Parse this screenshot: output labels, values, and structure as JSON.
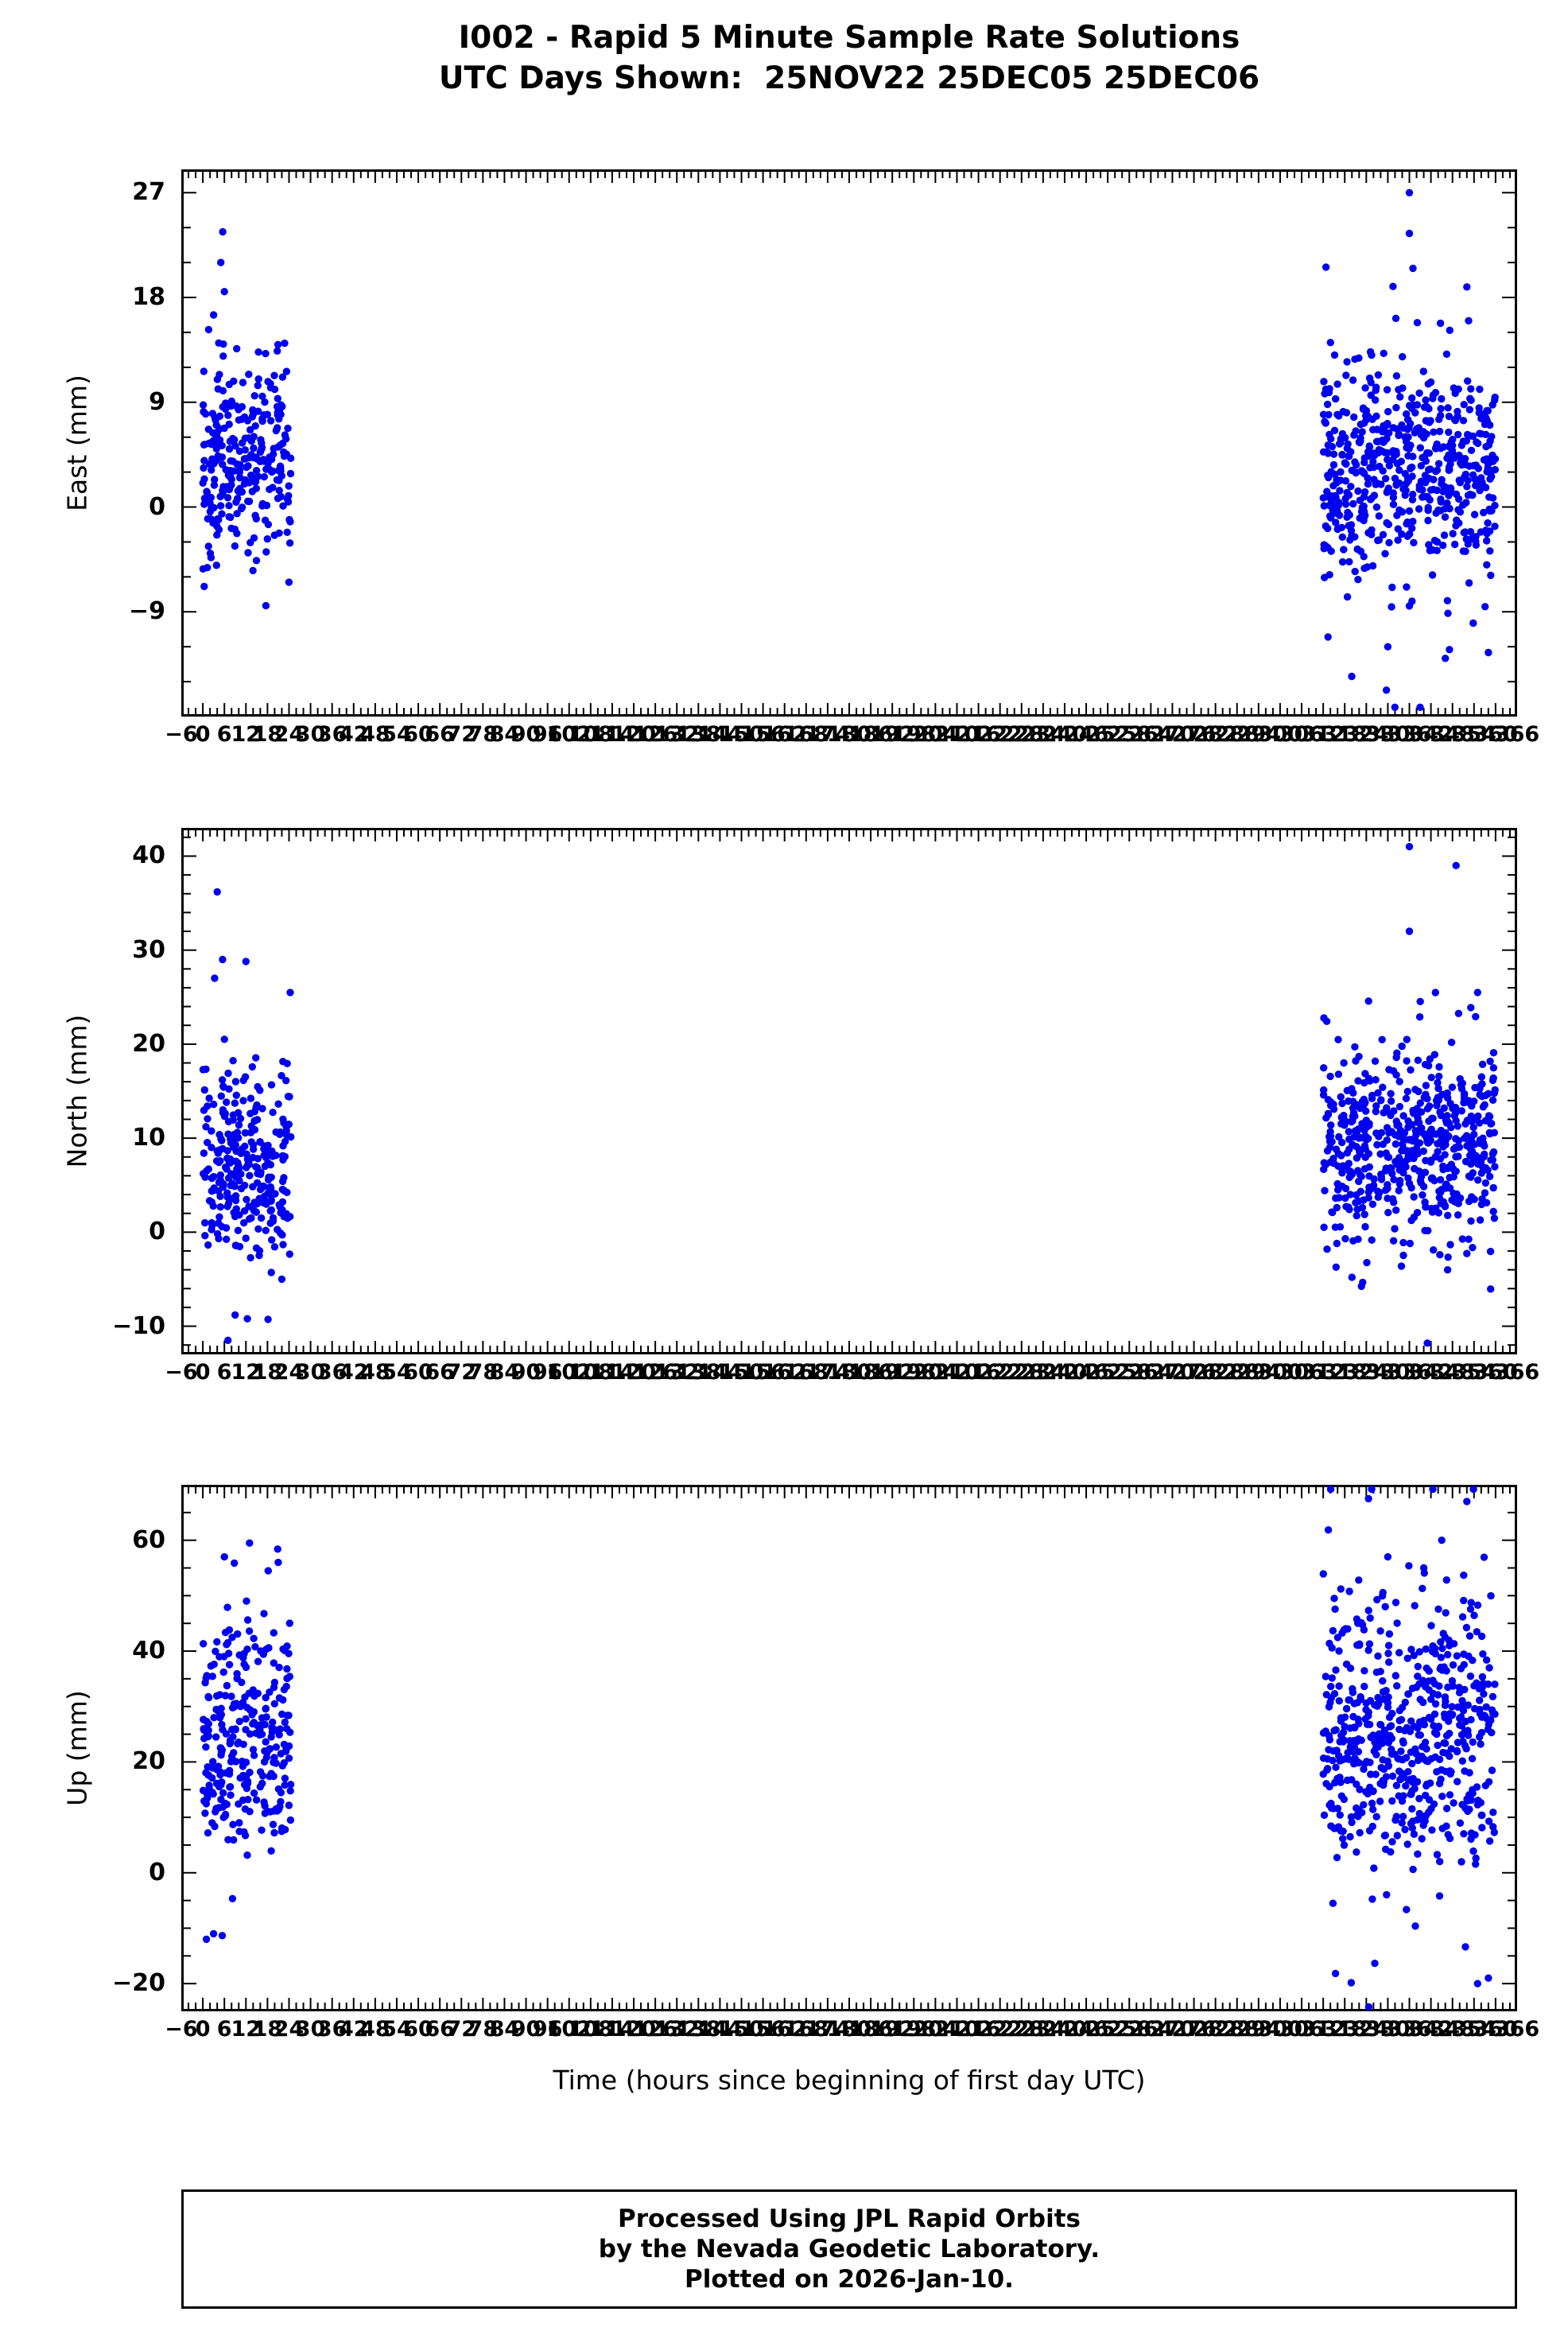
{
  "title": {
    "line1": "I002 - Rapid 5 Minute Sample Rate Solutions",
    "line2": "UTC Days Shown:  25NOV22 25DEC05 25DEC06"
  },
  "xlabel": "Time (hours since beginning of first day UTC)",
  "footer": {
    "line1": "Processed Using JPL Rapid Orbits",
    "line2": "by the Nevada Geodetic Laboratory.",
    "line3": "Plotted on 2026-Jan-10."
  },
  "colors": {
    "point": "#0000ee",
    "axis": "#000000",
    "background": "#ffffff"
  },
  "chart_data": [
    {
      "type": "scatter",
      "name": "East",
      "ylabel": "East (mm)",
      "xlim": [
        -6,
        366
      ],
      "ylim": [
        -18,
        29
      ],
      "yticks": [
        -9,
        0,
        9,
        18,
        27
      ],
      "y_minor_step": 3,
      "x_major_step": 6,
      "x_minor_step": 2,
      "clusters": [
        {
          "x_start": 0,
          "x_end": 24.5,
          "n": 288,
          "mean": 4.0,
          "std": 4.0,
          "outlier_frac": 0.05,
          "outlier_scale": 2.0,
          "seed": 11
        },
        {
          "x_start": 312,
          "x_end": 360,
          "n": 576,
          "mean": 3.5,
          "std": 4.3,
          "outlier_frac": 0.06,
          "outlier_scale": 2.3,
          "seed": 12
        }
      ],
      "outliers": [
        [
          5,
          21
        ],
        [
          6,
          18.5
        ],
        [
          3,
          16.5
        ],
        [
          336,
          27
        ],
        [
          336,
          23.5
        ],
        [
          337,
          20.5
        ],
        [
          352,
          18.9
        ],
        [
          352.5,
          16
        ],
        [
          330,
          -12
        ],
        [
          346,
          -13
        ],
        [
          358,
          -12.5
        ],
        [
          336,
          -8.5
        ]
      ]
    },
    {
      "type": "scatter",
      "name": "North",
      "ylabel": "North (mm)",
      "xlim": [
        -6,
        366
      ],
      "ylim": [
        -13,
        43
      ],
      "yticks": [
        -10,
        0,
        10,
        20,
        30,
        40
      ],
      "y_minor_step": 2,
      "x_major_step": 6,
      "x_minor_step": 2,
      "clusters": [
        {
          "x_start": 0,
          "x_end": 24.5,
          "n": 288,
          "mean": 7.5,
          "std": 5.0,
          "outlier_frac": 0.05,
          "outlier_scale": 2.0,
          "seed": 21
        },
        {
          "x_start": 312,
          "x_end": 360,
          "n": 576,
          "mean": 9.0,
          "std": 5.0,
          "outlier_frac": 0.05,
          "outlier_scale": 2.2,
          "seed": 22
        }
      ],
      "outliers": [
        [
          4,
          36.2
        ],
        [
          5.5,
          29
        ],
        [
          12,
          28.8
        ],
        [
          7,
          -11.5
        ],
        [
          9,
          -8.8
        ],
        [
          336,
          41
        ],
        [
          349,
          39
        ],
        [
          341,
          -11.8
        ],
        [
          320,
          -4.8
        ],
        [
          336,
          32
        ],
        [
          355,
          25.5
        ]
      ]
    },
    {
      "type": "scatter",
      "name": "Up",
      "ylabel": "Up (mm)",
      "xlim": [
        -6,
        366
      ],
      "ylim": [
        -25,
        70
      ],
      "yticks": [
        -20,
        0,
        20,
        40,
        60
      ],
      "y_minor_step": 5,
      "x_major_step": 6,
      "x_minor_step": 2,
      "clusters": [
        {
          "x_start": 0,
          "x_end": 24.5,
          "n": 288,
          "mean": 25,
          "std": 11,
          "outlier_frac": 0.04,
          "outlier_scale": 1.8,
          "seed": 31
        },
        {
          "x_start": 312,
          "x_end": 360,
          "n": 576,
          "mean": 25,
          "std": 12,
          "outlier_frac": 0.05,
          "outlier_scale": 1.9,
          "seed": 32
        }
      ],
      "outliers": [
        [
          13,
          59.5
        ],
        [
          6,
          57
        ],
        [
          21,
          56
        ],
        [
          1,
          -12
        ],
        [
          3,
          -11
        ],
        [
          352,
          67
        ],
        [
          345,
          60
        ],
        [
          355,
          -20
        ],
        [
          358,
          -19
        ],
        [
          330,
          57
        ],
        [
          340,
          55
        ]
      ]
    }
  ]
}
